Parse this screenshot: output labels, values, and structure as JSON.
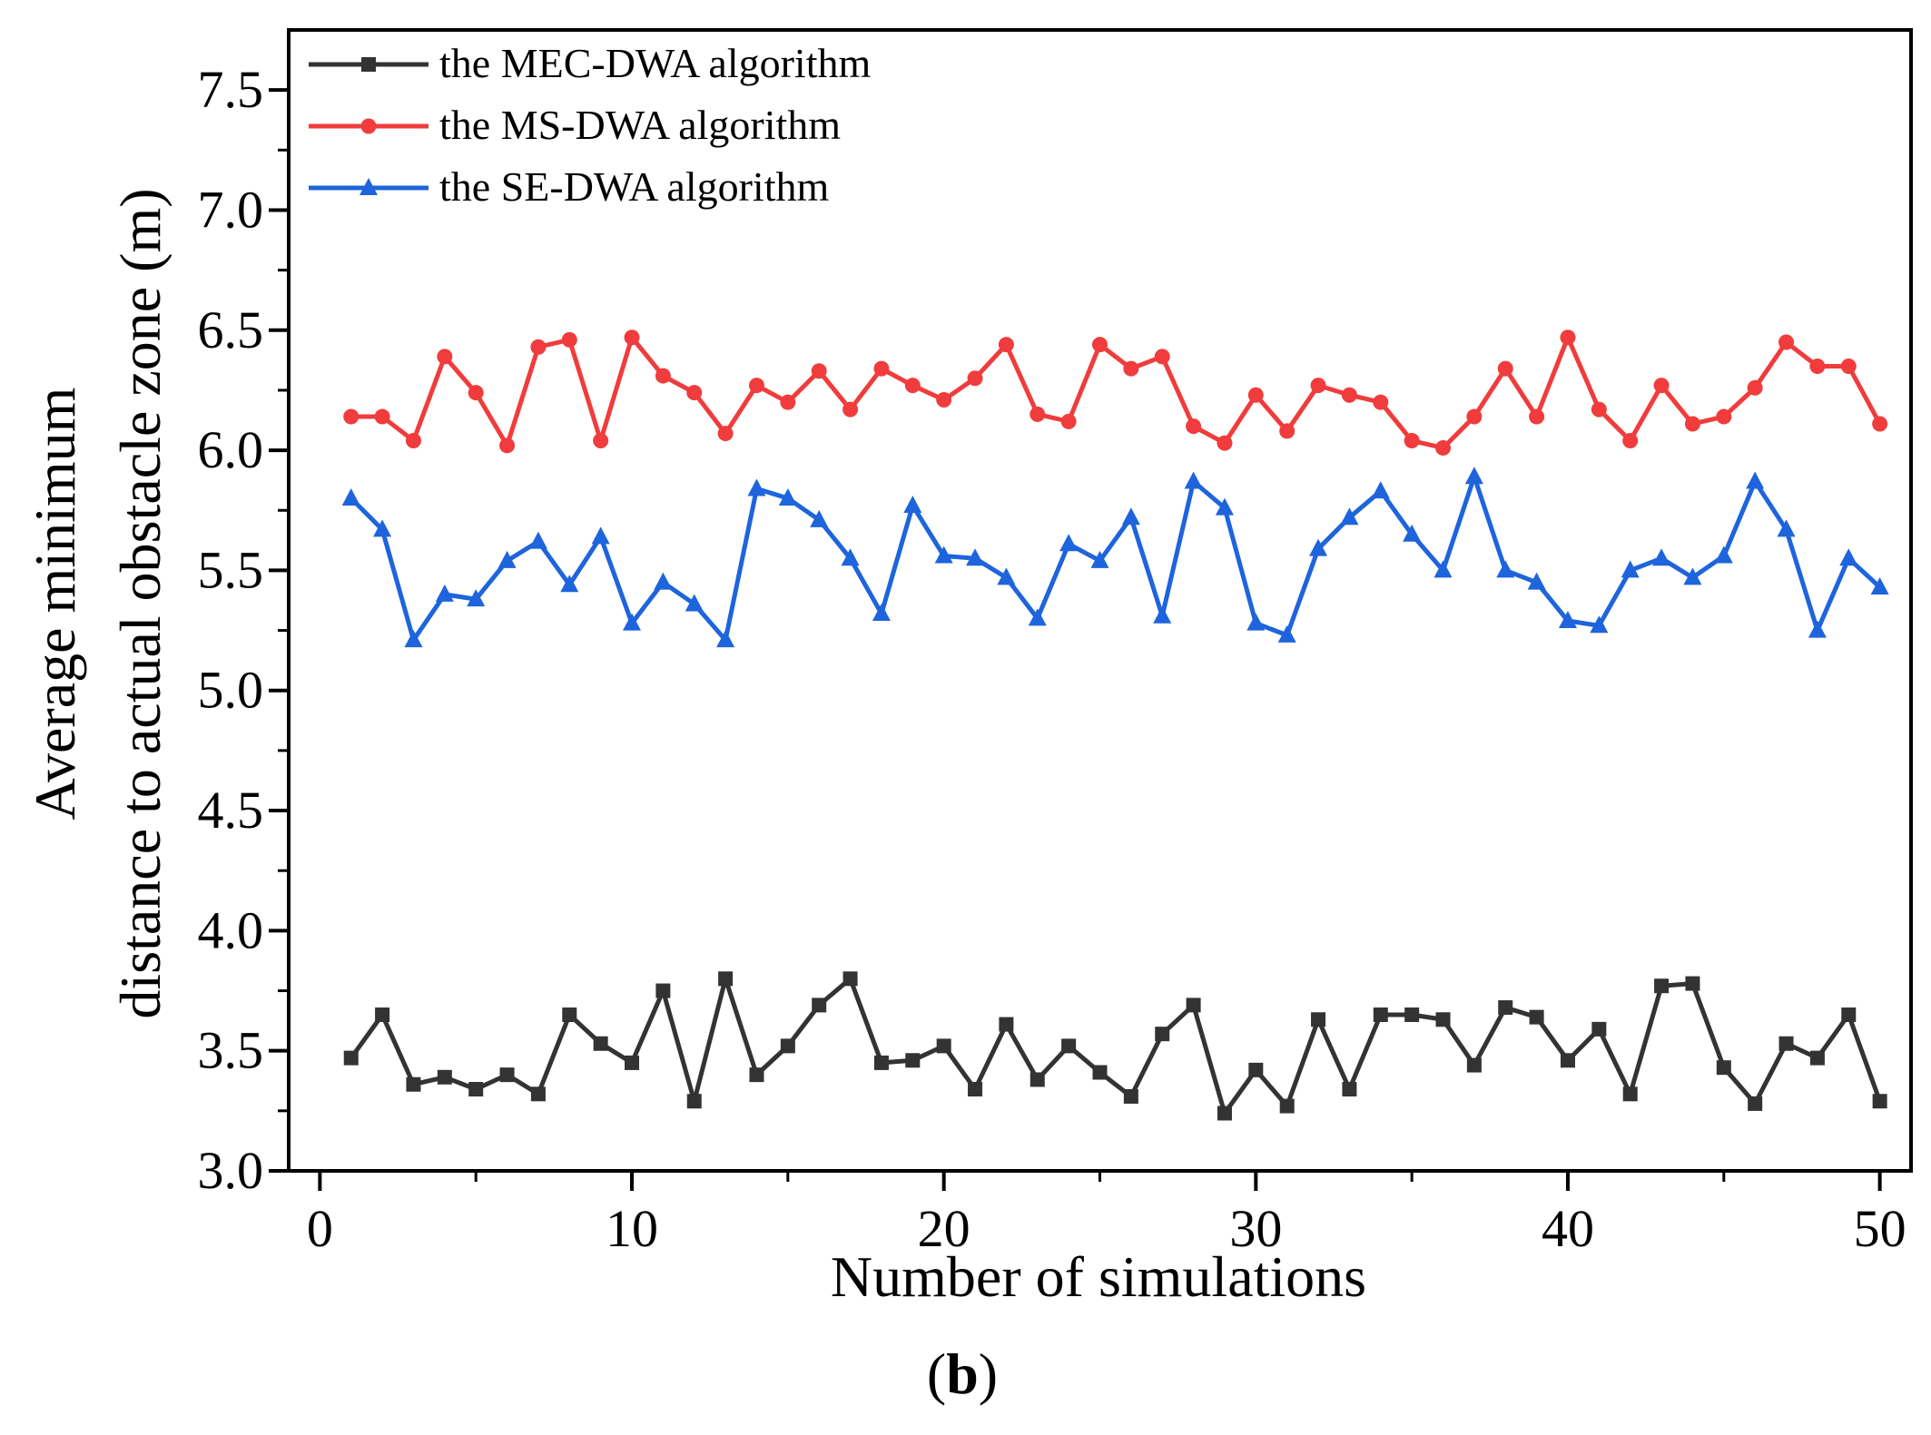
{
  "chart_data": {
    "type": "line",
    "title": "",
    "xlabel": "Number of simulations",
    "ylabel_line1": "Average minimum",
    "ylabel_line2": "distance to actual obstacle zone (m)",
    "xlim": [
      -1,
      51
    ],
    "ylim": [
      3.0,
      7.75
    ],
    "x_ticks": [
      0,
      10,
      20,
      30,
      40,
      50
    ],
    "y_ticks": [
      3.0,
      3.5,
      4.0,
      4.5,
      5.0,
      5.5,
      6.0,
      6.5,
      7.0,
      7.5
    ],
    "x_minor_step": 5,
    "y_minor_step": 0.25,
    "grid": false,
    "legend_position": "top-left",
    "x": [
      1,
      2,
      3,
      4,
      5,
      6,
      7,
      8,
      9,
      10,
      11,
      12,
      13,
      14,
      15,
      16,
      17,
      18,
      19,
      20,
      21,
      22,
      23,
      24,
      25,
      26,
      27,
      28,
      29,
      30,
      31,
      32,
      33,
      34,
      35,
      36,
      37,
      38,
      39,
      40,
      41,
      42,
      43,
      44,
      45,
      46,
      47,
      48,
      49,
      50
    ],
    "series": [
      {
        "name": "the MEC-DWA algorithm",
        "color": "#333333",
        "marker": "square",
        "values": [
          3.47,
          3.65,
          3.36,
          3.39,
          3.34,
          3.4,
          3.32,
          3.65,
          3.53,
          3.45,
          3.75,
          3.29,
          3.8,
          3.4,
          3.52,
          3.69,
          3.8,
          3.45,
          3.46,
          3.52,
          3.34,
          3.61,
          3.38,
          3.52,
          3.41,
          3.31,
          3.57,
          3.69,
          3.24,
          3.42,
          3.27,
          3.63,
          3.34,
          3.65,
          3.65,
          3.63,
          3.44,
          3.68,
          3.64,
          3.46,
          3.59,
          3.32,
          3.77,
          3.78,
          3.43,
          3.28,
          3.53,
          3.47,
          3.65,
          3.29
        ]
      },
      {
        "name": "the MS-DWA algorithm",
        "color": "#f03c3c",
        "marker": "circle",
        "values": [
          6.14,
          6.14,
          6.04,
          6.39,
          6.24,
          6.02,
          6.43,
          6.46,
          6.04,
          6.47,
          6.31,
          6.24,
          6.07,
          6.27,
          6.2,
          6.33,
          6.17,
          6.34,
          6.27,
          6.21,
          6.3,
          6.44,
          6.15,
          6.12,
          6.44,
          6.34,
          6.39,
          6.1,
          6.03,
          6.23,
          6.08,
          6.27,
          6.23,
          6.2,
          6.04,
          6.01,
          6.14,
          6.34,
          6.14,
          6.47,
          6.17,
          6.04,
          6.27,
          6.11,
          6.14,
          6.26,
          6.45,
          6.35,
          6.35,
          6.11
        ]
      },
      {
        "name": "the SE-DWA algorithm",
        "color": "#1e64dc",
        "marker": "triangle",
        "values": [
          5.8,
          5.67,
          5.21,
          5.4,
          5.38,
          5.54,
          5.62,
          5.44,
          5.64,
          5.28,
          5.45,
          5.36,
          5.21,
          5.84,
          5.8,
          5.71,
          5.55,
          5.32,
          5.77,
          5.56,
          5.55,
          5.47,
          5.3,
          5.61,
          5.54,
          5.72,
          5.31,
          5.87,
          5.76,
          5.28,
          5.23,
          5.59,
          5.72,
          5.83,
          5.65,
          5.5,
          5.89,
          5.5,
          5.45,
          5.29,
          5.27,
          5.5,
          5.55,
          5.47,
          5.56,
          5.87,
          5.67,
          5.25,
          5.55,
          5.43
        ]
      }
    ]
  },
  "panel_label": {
    "open": "(",
    "letter": "b",
    "close": ")"
  }
}
